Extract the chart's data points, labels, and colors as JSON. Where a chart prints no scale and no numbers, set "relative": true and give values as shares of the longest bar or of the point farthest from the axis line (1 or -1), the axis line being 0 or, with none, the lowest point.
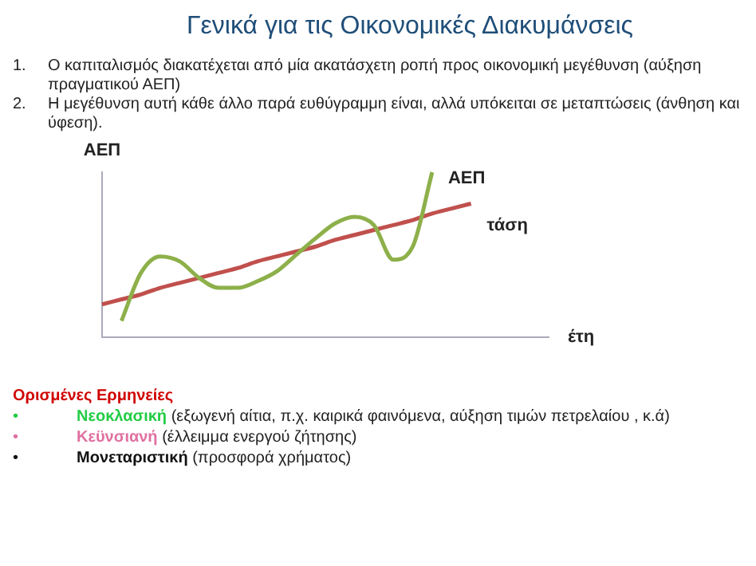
{
  "chart_data": {
    "type": "line",
    "title": "Γενικά για τις Οικονομικές Διακυμάνσεις",
    "relative": true,
    "xlabel": "έτη",
    "ylabel": "ΑΕΠ",
    "legend": false,
    "grid": false,
    "marker": "none",
    "line_style": "solid",
    "categories": [
      null,
      null,
      null,
      null,
      null,
      null,
      null,
      null,
      null,
      null,
      null,
      null,
      null,
      null,
      null,
      null,
      null,
      null,
      null,
      null,
      null,
      null,
      null,
      null
    ],
    "series": [
      {
        "name": "ΑΕΠ",
        "color": "#8db04a",
        "values": [
          null,
          0.1,
          0.39,
          0.49,
          0.46,
          0.36,
          0.3,
          0.3,
          0.34,
          0.4,
          0.5,
          0.6,
          0.69,
          0.73,
          0.68,
          0.47,
          0.55,
          1.0,
          null,
          null,
          null,
          null,
          null,
          null
        ]
      },
      {
        "name": "τάση",
        "color": "#c0504d",
        "values": [
          0.2,
          0.23,
          0.26,
          0.3,
          0.33,
          0.36,
          0.39,
          0.42,
          0.46,
          0.49,
          0.52,
          0.55,
          0.59,
          0.62,
          0.65,
          0.68,
          0.71,
          0.75,
          0.78,
          0.81,
          null,
          null,
          null,
          null
        ]
      }
    ],
    "annotations": [
      "1.\tΟ καπιταλισμός διακατέχεται από μία ακατάσχετη ροπή προς  οικονομική μεγέθυνση (αύξηση πραγματικού ΑΕΠ)",
      "2.\tΗ μεγέθυνση αυτή κάθε άλλο παρά  ευθύγραμμη είναι, αλλά υπόκειται σε μεταπτώσεις (άνθηση και ύφεση).",
      "Ορισμένες Ερμηνείες",
      "•\tΝεοκλασική (εξωγενή αίτια, π.χ. καιρικά φαινόμενα, αύξηση τιμών πετρελαίου , κ.ά)",
      "•\tΚεϋνσιανή (έλλειμμα ενεργού ζήτησης)",
      "•\tΜονεταριστική (προσφορά χρήματος)"
    ]
  }
}
